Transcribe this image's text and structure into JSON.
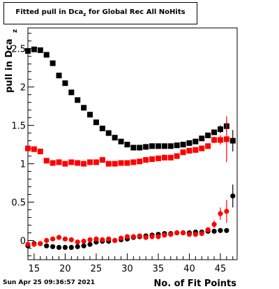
{
  "title": {
    "prefix": "Fitted pull in Dca",
    "subscript": "z",
    "suffix": "  for Global Rec All NoHits"
  },
  "timestamp": "Sun Apr 25 09:36:57 2021",
  "colors": {
    "black_series": "#000000",
    "red_series": "#ff0000"
  },
  "chart_data": {
    "type": "scatter",
    "title": "Fitted pull in Dca z  for Global Rec All NoHits",
    "xlabel": "No. of Fit Points",
    "ylabel": "pull in Dca",
    "ylabel_subscript": "z",
    "xlim": [
      14,
      47.7
    ],
    "ylim": [
      -0.25,
      2.77
    ],
    "x_ticks": [
      15,
      20,
      25,
      30,
      35,
      40,
      45
    ],
    "y_ticks": [
      0,
      0.5,
      1,
      1.5,
      2,
      2.5
    ],
    "x_tick_labels": [
      "15",
      "20",
      "25",
      "30",
      "35",
      "40",
      "45"
    ],
    "y_tick_labels": [
      "0",
      "0.5",
      "1",
      "1.5",
      "2",
      "2.5"
    ],
    "grid": false,
    "legend": "none",
    "series": [
      {
        "color": "#000000",
        "marker": "square",
        "x": [
          14,
          15,
          16,
          17,
          18,
          19,
          20,
          21,
          22,
          23,
          24,
          25,
          26,
          27,
          28,
          29,
          30,
          31,
          32,
          33,
          34,
          35,
          36,
          37,
          38,
          39,
          40,
          41,
          42,
          43,
          44,
          45,
          46,
          47
        ],
        "y": [
          2.47,
          2.49,
          2.48,
          2.42,
          2.31,
          2.15,
          2.05,
          1.93,
          1.83,
          1.73,
          1.64,
          1.54,
          1.46,
          1.4,
          1.34,
          1.29,
          1.25,
          1.21,
          1.21,
          1.22,
          1.23,
          1.23,
          1.23,
          1.23,
          1.24,
          1.25,
          1.27,
          1.29,
          1.33,
          1.37,
          1.41,
          1.45,
          1.49,
          1.3
        ],
        "err": [
          0,
          0,
          0,
          0,
          0,
          0,
          0,
          0,
          0,
          0,
          0,
          0,
          0,
          0,
          0,
          0,
          0,
          0,
          0,
          0,
          0,
          0,
          0,
          0,
          0,
          0,
          0,
          0,
          0,
          0,
          0,
          0.05,
          0.07,
          0.14
        ]
      },
      {
        "color": "#ff0000",
        "marker": "square",
        "x": [
          14,
          15,
          16,
          17,
          18,
          19,
          20,
          21,
          22,
          23,
          24,
          25,
          26,
          27,
          28,
          29,
          30,
          31,
          32,
          33,
          34,
          35,
          36,
          37,
          38,
          39,
          40,
          41,
          42,
          43,
          44,
          45,
          46
        ],
        "y": [
          1.2,
          1.19,
          1.16,
          1.04,
          1.01,
          1.02,
          1.0,
          1.02,
          1.01,
          1.0,
          1.02,
          1.02,
          1.05,
          1.0,
          1.0,
          1.01,
          1.01,
          1.02,
          1.03,
          1.05,
          1.06,
          1.07,
          1.08,
          1.08,
          1.1,
          1.15,
          1.17,
          1.18,
          1.2,
          1.23,
          1.31,
          1.31,
          1.32
        ],
        "err": [
          0,
          0,
          0,
          0,
          0,
          0,
          0,
          0,
          0,
          0,
          0,
          0,
          0,
          0,
          0,
          0,
          0,
          0,
          0,
          0,
          0,
          0,
          0,
          0,
          0,
          0,
          0,
          0,
          0,
          0,
          0.04,
          0.06,
          0.3
        ]
      },
      {
        "color": "#000000",
        "marker": "circle",
        "x": [
          14,
          15,
          16,
          17,
          18,
          19,
          20,
          21,
          22,
          23,
          24,
          25,
          26,
          27,
          28,
          29,
          30,
          31,
          32,
          33,
          34,
          35,
          36,
          37,
          38,
          39,
          40,
          41,
          42,
          43,
          44,
          45,
          46,
          47
        ],
        "y": [
          -0.07,
          -0.04,
          -0.04,
          -0.07,
          -0.08,
          -0.09,
          -0.09,
          -0.09,
          -0.08,
          -0.07,
          -0.05,
          -0.02,
          -0.01,
          -0.01,
          0.0,
          0.01,
          0.02,
          0.04,
          0.05,
          0.06,
          0.07,
          0.08,
          0.09,
          0.09,
          0.1,
          0.1,
          0.1,
          0.11,
          0.11,
          0.12,
          0.12,
          0.13,
          0.13,
          0.58
        ],
        "err": [
          0,
          0,
          0,
          0,
          0,
          0,
          0,
          0,
          0,
          0,
          0,
          0,
          0,
          0,
          0,
          0,
          0,
          0,
          0,
          0,
          0,
          0,
          0,
          0,
          0,
          0,
          0,
          0,
          0,
          0,
          0,
          0,
          0,
          0.15
        ]
      },
      {
        "color": "#ff0000",
        "marker": "circle",
        "x": [
          14,
          15,
          16,
          17,
          18,
          19,
          20,
          21,
          22,
          23,
          24,
          25,
          26,
          27,
          28,
          29,
          30,
          31,
          32,
          33,
          34,
          35,
          36,
          37,
          38,
          39,
          40,
          41,
          42,
          43,
          44,
          45,
          46
        ],
        "y": [
          -0.05,
          -0.05,
          -0.04,
          0.0,
          0.02,
          0.04,
          0.02,
          0.01,
          -0.02,
          -0.01,
          0.01,
          0.02,
          0.01,
          0.02,
          0.0,
          0.03,
          0.05,
          0.05,
          0.06,
          0.04,
          0.05,
          0.05,
          0.07,
          0.08,
          0.1,
          0.1,
          0.08,
          0.08,
          0.09,
          0.14,
          0.21,
          0.35,
          0.38
        ],
        "err": [
          0,
          0,
          0,
          0,
          0,
          0,
          0,
          0,
          0,
          0,
          0,
          0,
          0,
          0,
          0,
          0,
          0,
          0,
          0,
          0,
          0,
          0,
          0,
          0,
          0,
          0,
          0,
          0,
          0,
          0.03,
          0.05,
          0.08,
          0.15
        ]
      }
    ]
  }
}
